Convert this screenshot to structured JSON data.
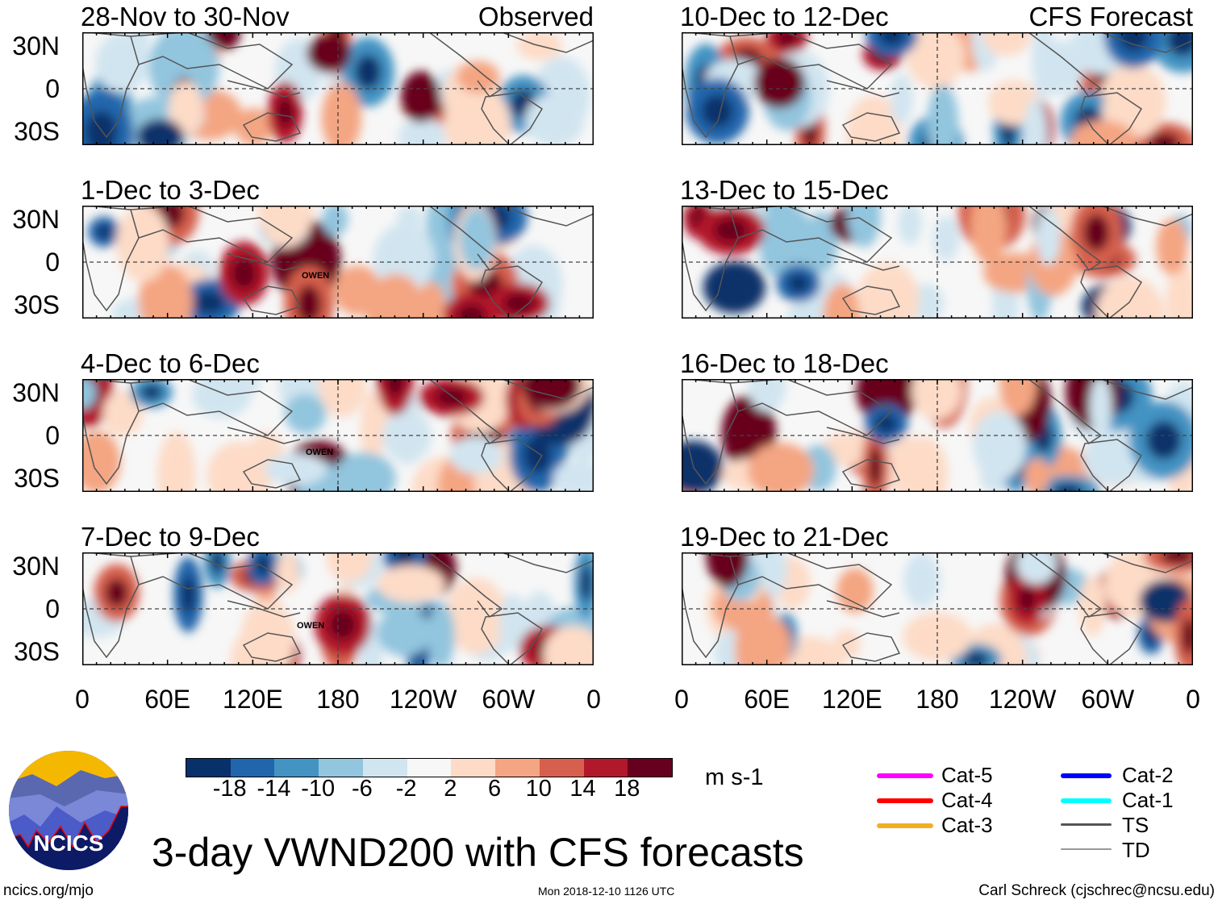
{
  "title": "3-day VWND200 with CFS forecasts",
  "footer": {
    "left": "ncics.org/mjo",
    "center": "Mon 2018-12-10 1126 UTC",
    "right": "Carl Schreck (cjschrec@ncsu.edu)"
  },
  "logo_text": "NCICS",
  "chart_data": {
    "type": "heatmap",
    "variable": "200-hPa meridional wind anomaly",
    "units": "m s-1",
    "y_ticks": [
      "30N",
      "0",
      "30S"
    ],
    "x_ticks": [
      "0",
      "60E",
      "120E",
      "180",
      "120W",
      "60W",
      "0"
    ],
    "columns": [
      {
        "label": "Observed",
        "panels": [
          "28-Nov to 30-Nov",
          "1-Dec to 3-Dec",
          "4-Dec to 6-Dec",
          "7-Dec to 9-Dec"
        ]
      },
      {
        "label": "CFS Forecast",
        "panels": [
          "10-Dec to 12-Dec",
          "13-Dec to 15-Dec",
          "16-Dec to 18-Dec",
          "19-Dec to 21-Dec"
        ]
      }
    ],
    "storm_label": "OWEN",
    "storm_panels": [
      1,
      2,
      3
    ],
    "colorbar": {
      "levels": [
        "-18",
        "-14",
        "-10",
        "-6",
        "-2",
        "2",
        "6",
        "10",
        "14",
        "18"
      ],
      "colors": [
        "#08306b",
        "#2166ac",
        "#4393c3",
        "#92c5de",
        "#d1e5f0",
        "#f7f7f7",
        "#fddbc7",
        "#f4a582",
        "#d6604d",
        "#b2182b",
        "#67001f"
      ]
    }
  },
  "legend": [
    {
      "label": "Cat-5",
      "color": "#ff00ff"
    },
    {
      "label": "Cat-4",
      "color": "#ff0000"
    },
    {
      "label": "Cat-3",
      "color": "#f0b020"
    },
    {
      "label": "Cat-2",
      "color": "#0000ff"
    },
    {
      "label": "Cat-1",
      "color": "#00ffff"
    },
    {
      "label": "TS",
      "color": "#555555"
    },
    {
      "label": "TD",
      "color": "#999999"
    }
  ]
}
